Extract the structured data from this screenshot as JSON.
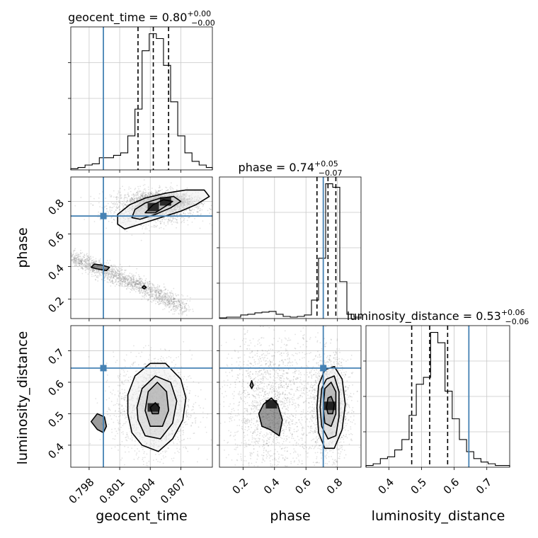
{
  "figure": {
    "type": "corner_plot",
    "parameters": [
      "geocent_time",
      "phase",
      "luminosity_distance"
    ],
    "truth_color": "#4682b4"
  },
  "chart_data": [
    {
      "type": "histogram",
      "parameter": "geocent_time",
      "title_param": "geocent_time",
      "title_median": "0.80",
      "title_plus": "+0.00",
      "title_minus": "−0.00",
      "quantiles": [
        0.8028,
        0.8043,
        0.8058
      ],
      "truth": 0.7994,
      "xlim": [
        0.7962,
        0.8101
      ],
      "bins": [
        0.7962,
        0.7969,
        0.7976,
        0.7983,
        0.799,
        0.7997,
        0.8004,
        0.8011,
        0.8018,
        0.8025,
        0.8032,
        0.8039,
        0.8046,
        0.8053,
        0.806,
        0.8067,
        0.8074,
        0.8081,
        0.8088,
        0.8095,
        0.8101
      ],
      "values": [
        1,
        2,
        4,
        5,
        10,
        10,
        12,
        14,
        28,
        50,
        98,
        112,
        108,
        86,
        56,
        28,
        14,
        7,
        4,
        2
      ]
    },
    {
      "type": "histogram",
      "parameter": "phase",
      "title_param": "phase",
      "title_median": "0.74",
      "title_plus": "+0.05",
      "title_minus": "−0.07",
      "quantiles": [
        0.67,
        0.74,
        0.79
      ],
      "truth": 0.71,
      "xlim": [
        0.05,
        0.95
      ],
      "bins": [
        0.05,
        0.095,
        0.14,
        0.185,
        0.23,
        0.275,
        0.32,
        0.365,
        0.41,
        0.455,
        0.5,
        0.545,
        0.59,
        0.635,
        0.68,
        0.725,
        0.77,
        0.815,
        0.86,
        0.905,
        0.95
      ],
      "values": [
        1,
        2,
        2,
        5,
        6,
        8,
        9,
        10,
        6,
        3,
        2,
        3,
        5,
        26,
        85,
        190,
        185,
        52,
        6,
        2
      ]
    },
    {
      "type": "histogram",
      "parameter": "luminosity_distance",
      "title_param": "luminosity_distance",
      "title_median": "0.53",
      "title_plus": "+0.06",
      "title_minus": "−0.06",
      "quantiles": [
        0.47,
        0.525,
        0.58
      ],
      "truth": 0.645,
      "xlim": [
        0.33,
        0.77
      ],
      "bins": [
        0.33,
        0.352,
        0.374,
        0.396,
        0.418,
        0.44,
        0.462,
        0.484,
        0.506,
        0.528,
        0.55,
        0.572,
        0.594,
        0.616,
        0.638,
        0.66,
        0.682,
        0.704,
        0.726,
        0.748,
        0.77
      ],
      "values": [
        1,
        2,
        5,
        6,
        10,
        16,
        30,
        48,
        52,
        78,
        72,
        44,
        28,
        16,
        9,
        5,
        3,
        2,
        1,
        1
      ]
    },
    {
      "type": "2d_density",
      "x_parameter": "geocent_time",
      "y_parameter": "phase",
      "xlim": [
        0.7962,
        0.8101
      ],
      "ylim": [
        0.08,
        0.95
      ],
      "truth": [
        0.7994,
        0.71
      ],
      "modes": [
        {
          "x": 0.8043,
          "y": 0.765,
          "sx": 0.0012,
          "sy": 0.03
        },
        {
          "x": 0.8055,
          "y": 0.8,
          "sx": 0.0008,
          "sy": 0.015
        }
      ],
      "contours": [
        [
          [
            0.8008,
            0.66
          ],
          [
            0.8015,
            0.63
          ],
          [
            0.803,
            0.66
          ],
          [
            0.805,
            0.7
          ],
          [
            0.807,
            0.74
          ],
          [
            0.8085,
            0.78
          ],
          [
            0.8098,
            0.83
          ],
          [
            0.8093,
            0.87
          ],
          [
            0.8075,
            0.87
          ],
          [
            0.8055,
            0.85
          ],
          [
            0.8035,
            0.82
          ],
          [
            0.802,
            0.78
          ],
          [
            0.8008,
            0.72
          ]
        ],
        [
          [
            0.8022,
            0.7
          ],
          [
            0.803,
            0.69
          ],
          [
            0.8045,
            0.72
          ],
          [
            0.806,
            0.76
          ],
          [
            0.807,
            0.8
          ],
          [
            0.8063,
            0.83
          ],
          [
            0.805,
            0.82
          ],
          [
            0.8035,
            0.79
          ],
          [
            0.8025,
            0.75
          ]
        ],
        [
          [
            0.8035,
            0.73
          ],
          [
            0.8045,
            0.73
          ],
          [
            0.8055,
            0.77
          ],
          [
            0.8062,
            0.8
          ],
          [
            0.8053,
            0.81
          ],
          [
            0.8043,
            0.78
          ]
        ],
        [
          [
            0.7982,
            0.395
          ],
          [
            0.7988,
            0.385
          ],
          [
            0.7997,
            0.375
          ],
          [
            0.8,
            0.395
          ],
          [
            0.7993,
            0.408
          ],
          [
            0.7985,
            0.415
          ]
        ],
        [
          [
            0.8032,
            0.272
          ],
          [
            0.8034,
            0.262
          ],
          [
            0.8036,
            0.272
          ],
          [
            0.8034,
            0.282
          ]
        ]
      ]
    },
    {
      "type": "2d_density",
      "x_parameter": "geocent_time",
      "y_parameter": "luminosity_distance",
      "xlim": [
        0.7962,
        0.8101
      ],
      "ylim": [
        0.33,
        0.78
      ],
      "truth": [
        0.7994,
        0.645
      ],
      "modes": [
        {
          "x": 0.8043,
          "y": 0.52,
          "sx": 0.0011,
          "sy": 0.045
        }
      ],
      "contours": [
        [
          [
            0.8018,
            0.5
          ],
          [
            0.8022,
            0.44
          ],
          [
            0.8032,
            0.4
          ],
          [
            0.8048,
            0.38
          ],
          [
            0.8062,
            0.42
          ],
          [
            0.8072,
            0.48
          ],
          [
            0.8075,
            0.55
          ],
          [
            0.807,
            0.61
          ],
          [
            0.8055,
            0.66
          ],
          [
            0.804,
            0.66
          ],
          [
            0.8025,
            0.62
          ],
          [
            0.8018,
            0.56
          ]
        ],
        [
          [
            0.8028,
            0.48
          ],
          [
            0.8035,
            0.43
          ],
          [
            0.805,
            0.42
          ],
          [
            0.8062,
            0.47
          ],
          [
            0.8066,
            0.54
          ],
          [
            0.806,
            0.6
          ],
          [
            0.8045,
            0.62
          ],
          [
            0.8032,
            0.58
          ],
          [
            0.8027,
            0.52
          ]
        ],
        [
          [
            0.8035,
            0.51
          ],
          [
            0.804,
            0.46
          ],
          [
            0.8052,
            0.46
          ],
          [
            0.8058,
            0.51
          ],
          [
            0.8056,
            0.57
          ],
          [
            0.8047,
            0.6
          ],
          [
            0.8038,
            0.57
          ]
        ],
        [
          [
            0.804,
            0.52
          ],
          [
            0.8042,
            0.5
          ],
          [
            0.8048,
            0.5
          ],
          [
            0.8049,
            0.52
          ],
          [
            0.8045,
            0.535
          ]
        ],
        [
          [
            0.7982,
            0.475
          ],
          [
            0.7988,
            0.45
          ],
          [
            0.7994,
            0.44
          ],
          [
            0.7997,
            0.46
          ],
          [
            0.7995,
            0.49
          ],
          [
            0.7988,
            0.5
          ]
        ]
      ]
    },
    {
      "type": "2d_density",
      "x_parameter": "phase",
      "y_parameter": "luminosity_distance",
      "xlim": [
        0.05,
        0.95
      ],
      "ylim": [
        0.33,
        0.78
      ],
      "truth": [
        0.71,
        0.645
      ],
      "modes": [
        {
          "x": 0.75,
          "y": 0.525,
          "sx": 0.035,
          "sy": 0.045
        },
        {
          "x": 0.38,
          "y": 0.53,
          "sx": 0.09,
          "sy": 0.07
        }
      ],
      "contours": [
        [
          [
            0.67,
            0.52
          ],
          [
            0.68,
            0.44
          ],
          [
            0.72,
            0.39
          ],
          [
            0.78,
            0.39
          ],
          [
            0.83,
            0.45
          ],
          [
            0.85,
            0.53
          ],
          [
            0.83,
            0.61
          ],
          [
            0.78,
            0.65
          ],
          [
            0.72,
            0.64
          ],
          [
            0.68,
            0.59
          ]
        ],
        [
          [
            0.69,
            0.52
          ],
          [
            0.7,
            0.46
          ],
          [
            0.74,
            0.42
          ],
          [
            0.79,
            0.43
          ],
          [
            0.81,
            0.49
          ],
          [
            0.81,
            0.57
          ],
          [
            0.78,
            0.62
          ],
          [
            0.73,
            0.61
          ],
          [
            0.7,
            0.58
          ]
        ],
        [
          [
            0.71,
            0.52
          ],
          [
            0.72,
            0.47
          ],
          [
            0.76,
            0.46
          ],
          [
            0.79,
            0.5
          ],
          [
            0.79,
            0.57
          ],
          [
            0.76,
            0.6
          ],
          [
            0.72,
            0.58
          ]
        ],
        [
          [
            0.73,
            0.52
          ],
          [
            0.74,
            0.5
          ],
          [
            0.77,
            0.5
          ],
          [
            0.78,
            0.53
          ],
          [
            0.76,
            0.555
          ],
          [
            0.74,
            0.55
          ]
        ],
        [
          [
            0.3,
            0.5
          ],
          [
            0.32,
            0.46
          ],
          [
            0.37,
            0.45
          ],
          [
            0.43,
            0.43
          ],
          [
            0.45,
            0.48
          ],
          [
            0.42,
            0.53
          ],
          [
            0.38,
            0.55
          ],
          [
            0.33,
            0.53
          ]
        ],
        [
          [
            0.245,
            0.59
          ],
          [
            0.255,
            0.58
          ],
          [
            0.265,
            0.59
          ],
          [
            0.255,
            0.605
          ]
        ]
      ]
    }
  ],
  "axes": {
    "geocent_time": {
      "label": "geocent_time",
      "ticks": [
        {
          "v": 0.798,
          "label": "0.798"
        },
        {
          "v": 0.801,
          "label": "0.801"
        },
        {
          "v": 0.804,
          "label": "0.804"
        },
        {
          "v": 0.807,
          "label": "0.807"
        }
      ]
    },
    "phase": {
      "label": "phase",
      "ticks": [
        {
          "v": 0.2,
          "label": "0.2"
        },
        {
          "v": 0.4,
          "label": "0.4"
        },
        {
          "v": 0.6,
          "label": "0.6"
        },
        {
          "v": 0.8,
          "label": "0.8"
        }
      ]
    },
    "luminosity_distance": {
      "label": "luminosity_distance",
      "ticks": [
        {
          "v": 0.4,
          "label": "0.4"
        },
        {
          "v": 0.5,
          "label": "0.5"
        },
        {
          "v": 0.6,
          "label": "0.6"
        },
        {
          "v": 0.7,
          "label": "0.7"
        }
      ]
    }
  }
}
